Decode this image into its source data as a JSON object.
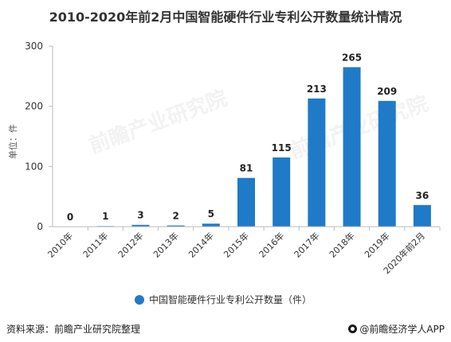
{
  "title": "2010-2020年前2月中国智能硬件行业专利公开数量统计情况",
  "watermark": "前瞻产业研究院",
  "source": "资料来源：前瞻产业研究院整理",
  "brand": "@前瞻经济学人APP",
  "colors": {
    "bar": "#1f7ac8",
    "axis": "#bbbbbb",
    "text": "#333333"
  },
  "chart_data": {
    "type": "bar",
    "title": "2010-2020年前2月中国智能硬件行业专利公开数量统计情况",
    "categories": [
      "2010年",
      "2011年",
      "2012年",
      "2013年",
      "2014年",
      "2015年",
      "2016年",
      "2017年",
      "2018年",
      "2019年",
      "2020年前2月"
    ],
    "series": [
      {
        "name": "中国智能硬件行业专利公开数量（件）",
        "values": [
          0,
          1,
          3,
          2,
          5,
          81,
          115,
          213,
          265,
          209,
          36
        ]
      }
    ],
    "ylabel": "单位：件",
    "xlabel": "",
    "ylim": [
      0,
      300
    ],
    "yticks": [
      0,
      100,
      200,
      300
    ],
    "grid": false,
    "legend": "bottom-center"
  }
}
